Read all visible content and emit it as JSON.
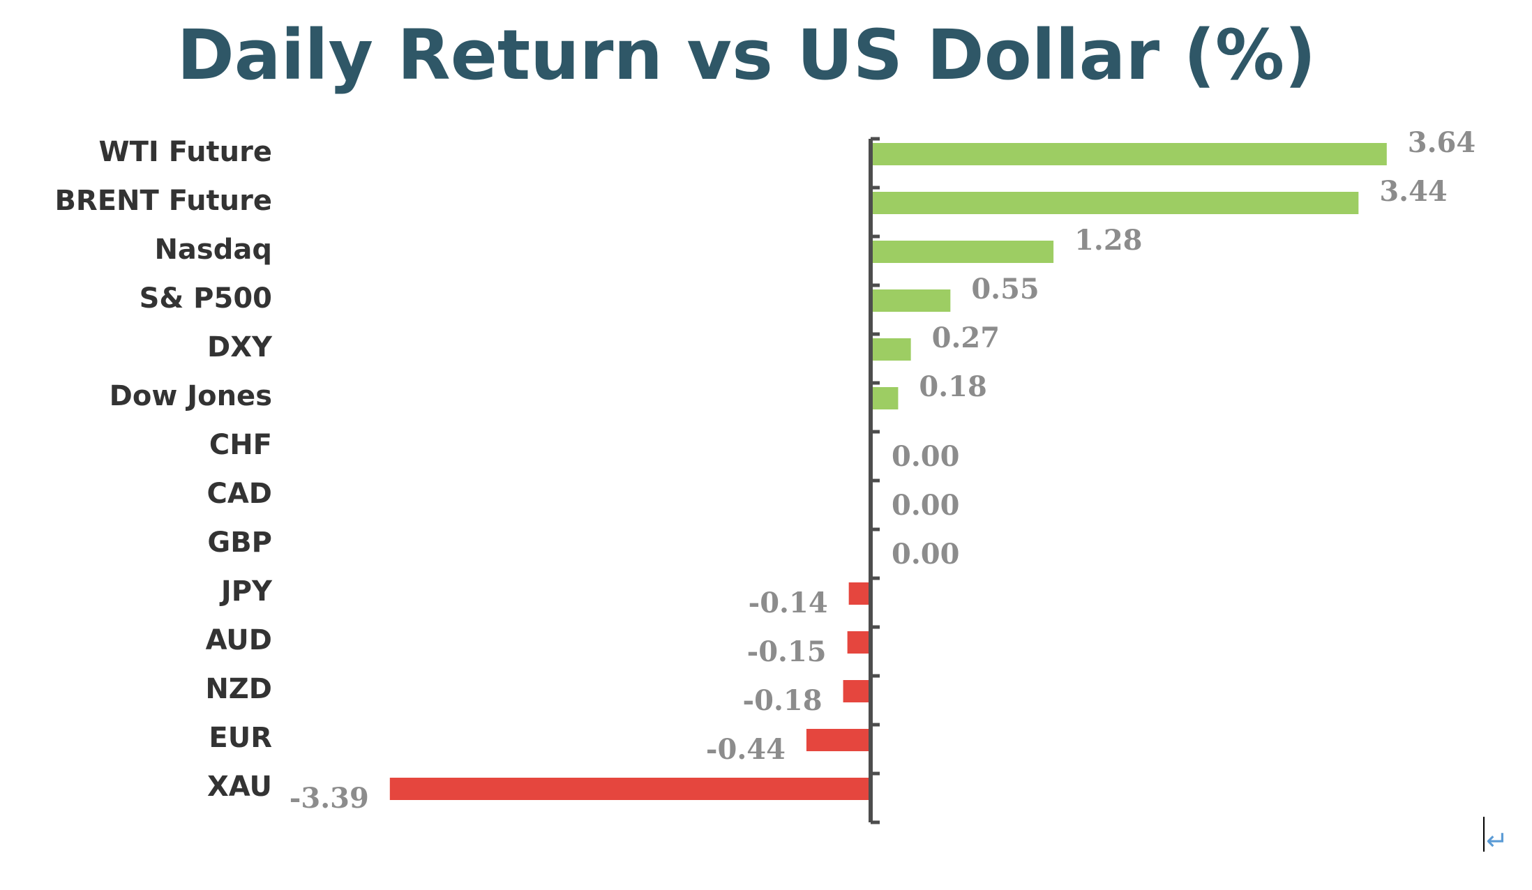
{
  "chart_data": {
    "type": "bar",
    "orientation": "horizontal",
    "title": "Daily Return vs US Dollar (%)",
    "categories": [
      "WTI Future",
      "BRENT Future",
      "Nasdaq",
      "S& P500",
      "DXY",
      "Dow Jones",
      "CHF",
      "CAD",
      "GBP",
      "JPY",
      "AUD",
      "NZD",
      "EUR",
      "XAU"
    ],
    "values": [
      3.64,
      3.44,
      1.28,
      0.55,
      0.27,
      0.18,
      0.0,
      0.0,
      0.0,
      -0.14,
      -0.15,
      -0.18,
      -0.44,
      -3.39
    ],
    "value_labels": [
      "3.64",
      "3.44",
      "1.28",
      "0.55",
      "0.27",
      "0.18",
      "0.00",
      "0.00",
      "0.00",
      "-0.14",
      "-0.15",
      "-0.18",
      "-0.44",
      "-3.39"
    ],
    "xlim": [
      -3.39,
      3.64
    ],
    "grid": false,
    "legend": "none",
    "colors": {
      "positive": "#9dcd63",
      "negative": "#e5463e",
      "title": "#2f5767",
      "axis": "#4d4d4d",
      "category_text": "#333333",
      "value_text": "#8c8c8c"
    }
  },
  "overlay": {
    "return_symbol": "↵",
    "text_cursor_icon": "text-cursor-icon"
  }
}
